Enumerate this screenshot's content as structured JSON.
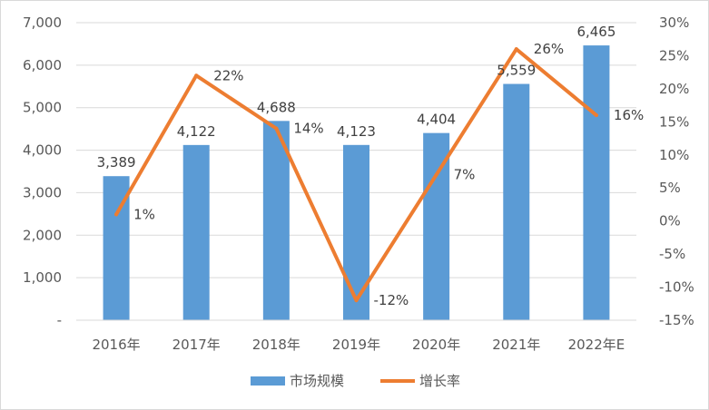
{
  "chart_data": {
    "type": "bar",
    "title": "",
    "categories": [
      "2016年",
      "2017年",
      "2018年",
      "2019年",
      "2020年",
      "2021年",
      "2022年E"
    ],
    "series": [
      {
        "name": "市场规模",
        "type": "bar",
        "axis": "left",
        "color": "#5b9bd5",
        "values": [
          3389,
          4122,
          4688,
          4123,
          4404,
          5559,
          6465
        ],
        "labels": [
          "3,389",
          "4,122",
          "4,688",
          "4,123",
          "4,404",
          "5,559",
          "6,465"
        ]
      },
      {
        "name": "增长率",
        "type": "line",
        "axis": "right",
        "color": "#ed7d31",
        "values": [
          1,
          22,
          14,
          -12,
          7,
          26,
          16
        ],
        "labels": [
          "1%",
          "22%",
          "14%",
          "-12%",
          "7%",
          "26%",
          "16%"
        ]
      }
    ],
    "left_axis": {
      "ylim": [
        0,
        7000
      ],
      "ticks": [
        0,
        1000,
        2000,
        3000,
        4000,
        5000,
        6000,
        7000
      ],
      "tick_labels": [
        "-",
        "1,000",
        "2,000",
        "3,000",
        "4,000",
        "5,000",
        "6,000",
        "7,000"
      ]
    },
    "right_axis": {
      "ylim": [
        -15,
        30
      ],
      "ticks": [
        -15,
        -10,
        -5,
        0,
        5,
        10,
        15,
        20,
        25,
        30
      ],
      "tick_labels": [
        "-15%",
        "-10%",
        "-5%",
        "0%",
        "5%",
        "10%",
        "15%",
        "20%",
        "25%",
        "30%"
      ]
    },
    "grid": true,
    "legend_position": "bottom",
    "colors": {
      "gridline": "#d9d9d9",
      "axis_text": "#595959",
      "label_text": "#404040"
    }
  }
}
